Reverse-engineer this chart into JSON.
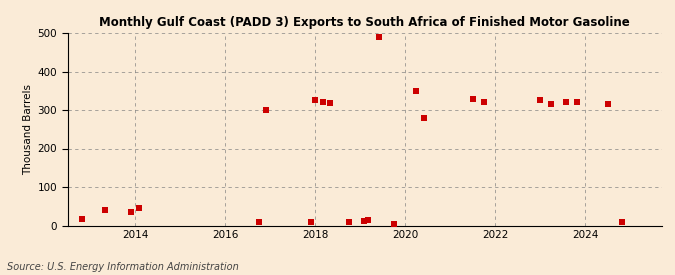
{
  "title": "Monthly Gulf Coast (PADD 3) Exports to South Africa of Finished Motor Gasoline",
  "ylabel": "Thousand Barrels",
  "source": "Source: U.S. Energy Information Administration",
  "background_color": "#faebd7",
  "plot_bg_color": "#faebd7",
  "marker_color": "#cc0000",
  "marker": "s",
  "marker_size": 4,
  "xlim": [
    2012.5,
    2025.7
  ],
  "ylim": [
    0,
    500
  ],
  "yticks": [
    0,
    100,
    200,
    300,
    400,
    500
  ],
  "xticks": [
    2014,
    2016,
    2018,
    2020,
    2022,
    2024
  ],
  "data_points": [
    [
      2012.83,
      18
    ],
    [
      2013.33,
      40
    ],
    [
      2013.92,
      35
    ],
    [
      2014.08,
      45
    ],
    [
      2016.75,
      10
    ],
    [
      2016.92,
      300
    ],
    [
      2017.92,
      8
    ],
    [
      2018.0,
      325
    ],
    [
      2018.17,
      320
    ],
    [
      2018.33,
      318
    ],
    [
      2018.75,
      10
    ],
    [
      2019.08,
      12
    ],
    [
      2019.17,
      15
    ],
    [
      2019.42,
      490
    ],
    [
      2019.75,
      5
    ],
    [
      2020.25,
      350
    ],
    [
      2020.42,
      280
    ],
    [
      2021.5,
      328
    ],
    [
      2021.75,
      320
    ],
    [
      2023.0,
      325
    ],
    [
      2023.25,
      315
    ],
    [
      2023.58,
      320
    ],
    [
      2023.83,
      320
    ],
    [
      2024.5,
      315
    ],
    [
      2024.83,
      10
    ]
  ]
}
